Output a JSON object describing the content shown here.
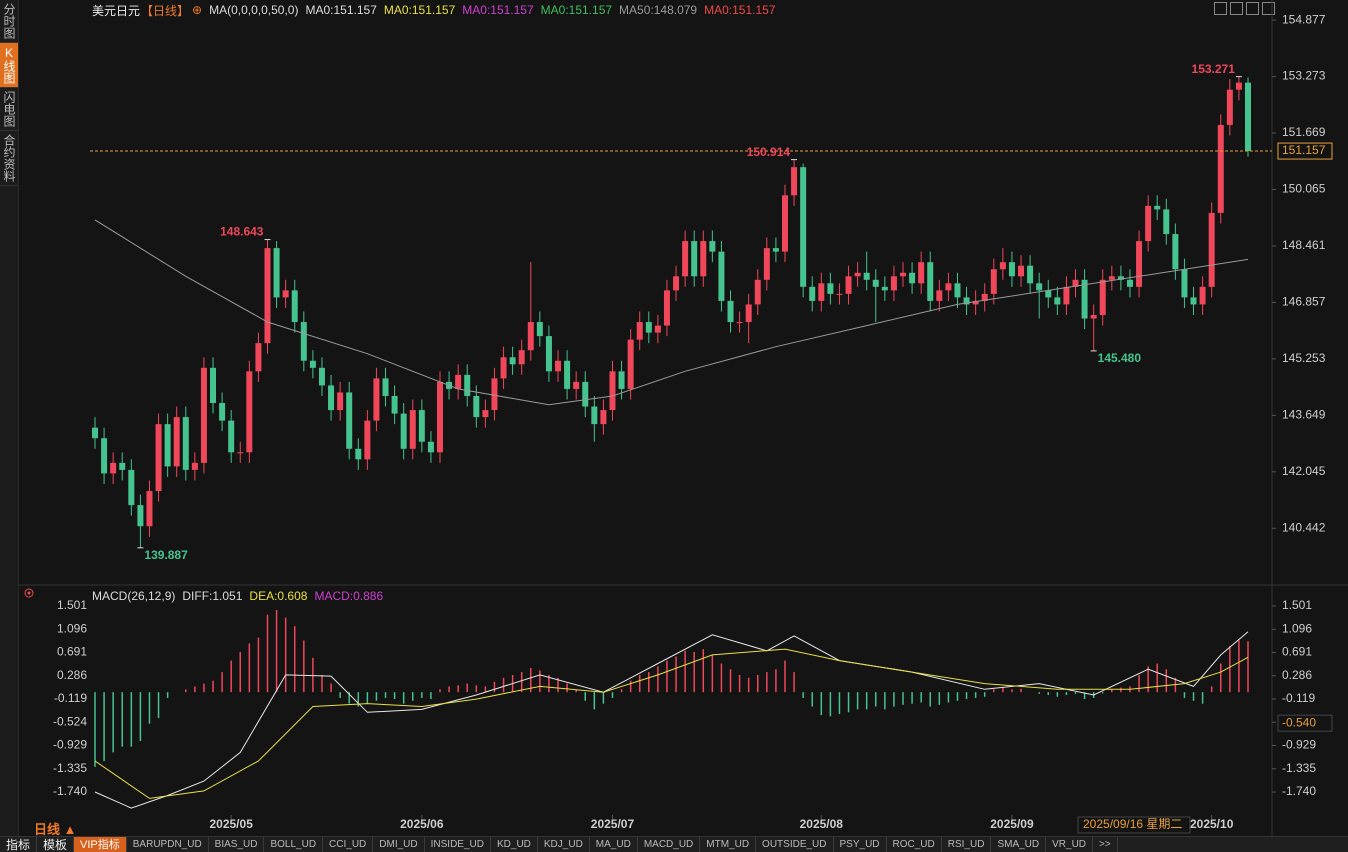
{
  "chart_data": {
    "type": "candlestick",
    "title": "美元日元",
    "period": "【日线】",
    "add_icon": "⊕",
    "legend": [
      {
        "text": "MA(0,0,0,0,50,0)",
        "color": "#dddddd"
      },
      {
        "text": "MA0:151.157",
        "color": "#dddddd"
      },
      {
        "text": "MA0:151.157",
        "color": "#e8e043"
      },
      {
        "text": "MA0:151.157",
        "color": "#d040d0"
      },
      {
        "text": "MA0:151.157",
        "color": "#3fbf5f"
      },
      {
        "text": "MA50:148.079",
        "color": "#9a9a9a"
      },
      {
        "text": "MA0:151.157",
        "color": "#f04848"
      }
    ],
    "up_color": "#f0475a",
    "down_color": "#45c48f",
    "last_color": "#e8a03c",
    "open": [
      143.3,
      143.0,
      142.0,
      142.3,
      142.1,
      141.1,
      140.5,
      141.5,
      143.4,
      142.2,
      143.6,
      142.1,
      142.3,
      145.0,
      144.0,
      143.5,
      142.6,
      142.6,
      144.9,
      145.7,
      148.4,
      147.0,
      147.2,
      146.3,
      145.2,
      145.0,
      144.5,
      143.8,
      144.3,
      142.7,
      142.4,
      143.5,
      144.7,
      144.2,
      143.7,
      142.7,
      143.8,
      142.9,
      142.6,
      144.6,
      144.4,
      144.8,
      144.2,
      143.6,
      143.8,
      144.7,
      145.3,
      145.1,
      145.5,
      146.3,
      145.9,
      144.9,
      145.2,
      144.4,
      144.6,
      143.9,
      143.4,
      143.8,
      144.9,
      144.4,
      145.8,
      146.3,
      146.0,
      146.2,
      147.2,
      147.6,
      148.6,
      147.6,
      148.6,
      148.3,
      146.9,
      146.3,
      146.3,
      146.8,
      147.5,
      148.4,
      148.3,
      149.9,
      150.7,
      147.3,
      146.9,
      147.4,
      147.1,
      147.1,
      147.6,
      147.7,
      147.5,
      147.3,
      147.2,
      147.6,
      147.7,
      147.4,
      148.0,
      146.9,
      147.2,
      147.4,
      147.0,
      146.8,
      146.9,
      147.1,
      147.8,
      148.0,
      147.6,
      147.9,
      147.4,
      147.2,
      147.0,
      146.8,
      147.3,
      147.5,
      146.4,
      146.5,
      147.5,
      147.6,
      147.5,
      147.3,
      148.6,
      149.6,
      149.5,
      148.8,
      147.8,
      147.0,
      146.8,
      147.3,
      149.4,
      151.9,
      152.9,
      153.1
    ],
    "high": [
      143.6,
      143.3,
      142.6,
      142.6,
      142.4,
      141.4,
      141.8,
      143.7,
      143.7,
      143.9,
      143.9,
      142.6,
      145.3,
      145.3,
      144.3,
      143.8,
      142.9,
      145.2,
      146.0,
      148.643,
      148.6,
      147.5,
      147.5,
      146.6,
      145.5,
      145.3,
      144.8,
      144.6,
      144.6,
      143.0,
      143.8,
      145.0,
      145.0,
      144.5,
      144.0,
      144.1,
      144.1,
      143.2,
      144.9,
      144.9,
      145.1,
      145.1,
      144.5,
      144.1,
      145.0,
      145.6,
      145.6,
      145.8,
      148.0,
      146.6,
      146.2,
      145.5,
      145.5,
      144.9,
      144.9,
      144.2,
      144.1,
      145.2,
      145.2,
      146.1,
      146.6,
      146.6,
      146.5,
      147.5,
      147.9,
      148.9,
      148.9,
      148.9,
      148.9,
      148.6,
      147.2,
      146.6,
      147.1,
      147.8,
      148.7,
      148.7,
      150.2,
      150.914,
      150.8,
      147.6,
      147.7,
      147.7,
      147.4,
      147.9,
      148.0,
      148.3,
      147.8,
      147.6,
      147.9,
      148.0,
      148.0,
      148.3,
      148.3,
      147.5,
      147.7,
      147.7,
      147.3,
      147.2,
      147.4,
      148.1,
      148.4,
      148.3,
      148.2,
      148.2,
      147.7,
      147.5,
      147.3,
      147.6,
      147.8,
      147.8,
      146.8,
      147.8,
      147.9,
      147.9,
      147.8,
      148.9,
      149.9,
      149.9,
      149.8,
      149.1,
      148.1,
      147.3,
      147.6,
      149.7,
      152.2,
      153.2,
      153.271,
      153.25
    ],
    "low": [
      142.7,
      141.7,
      141.7,
      141.8,
      140.8,
      139.887,
      140.2,
      141.2,
      141.9,
      141.9,
      141.8,
      141.8,
      142.0,
      143.7,
      143.2,
      142.3,
      142.3,
      142.3,
      144.6,
      145.4,
      146.7,
      146.7,
      146.0,
      144.9,
      144.7,
      144.2,
      143.5,
      143.5,
      142.4,
      142.1,
      142.1,
      143.2,
      143.9,
      143.4,
      142.4,
      142.4,
      142.6,
      142.3,
      142.3,
      144.1,
      144.1,
      143.9,
      143.3,
      143.3,
      143.5,
      144.4,
      144.8,
      144.8,
      145.2,
      145.6,
      144.6,
      144.6,
      144.1,
      144.1,
      143.6,
      142.9,
      143.1,
      143.5,
      144.1,
      144.1,
      145.5,
      145.7,
      145.7,
      145.9,
      146.9,
      147.3,
      147.3,
      147.3,
      148.0,
      146.6,
      146.0,
      146.0,
      145.7,
      146.5,
      147.2,
      148.0,
      148.0,
      149.6,
      147.0,
      146.6,
      146.6,
      146.8,
      146.8,
      146.8,
      147.3,
      147.2,
      146.3,
      146.9,
      146.9,
      147.3,
      147.1,
      147.1,
      146.6,
      146.6,
      146.9,
      146.7,
      146.5,
      146.5,
      146.6,
      146.8,
      147.5,
      147.3,
      147.3,
      147.1,
      146.4,
      146.7,
      146.5,
      146.5,
      147.0,
      146.1,
      145.48,
      146.2,
      147.2,
      147.2,
      147.0,
      147.0,
      148.3,
      149.2,
      148.5,
      147.5,
      146.7,
      146.5,
      146.5,
      147.0,
      149.1,
      151.6,
      152.6,
      151.0
    ],
    "close": [
      143.0,
      142.0,
      142.3,
      142.1,
      141.1,
      140.5,
      141.5,
      143.4,
      142.2,
      143.6,
      142.1,
      142.3,
      145.0,
      144.0,
      143.5,
      142.6,
      142.6,
      144.9,
      145.7,
      148.4,
      147.0,
      147.2,
      146.3,
      145.2,
      145.0,
      144.5,
      143.8,
      144.3,
      142.7,
      142.4,
      143.5,
      144.7,
      144.2,
      143.7,
      142.7,
      143.8,
      142.9,
      142.6,
      144.6,
      144.4,
      144.8,
      144.2,
      143.6,
      143.8,
      144.7,
      145.3,
      145.1,
      145.5,
      146.3,
      145.9,
      144.9,
      145.2,
      144.4,
      144.6,
      143.9,
      143.4,
      143.8,
      144.9,
      144.4,
      145.8,
      146.3,
      146.0,
      146.2,
      147.2,
      147.6,
      148.6,
      147.6,
      148.6,
      148.3,
      146.9,
      146.3,
      146.3,
      146.8,
      147.5,
      148.4,
      148.3,
      149.9,
      150.7,
      147.3,
      146.9,
      147.4,
      147.1,
      147.1,
      147.6,
      147.7,
      147.5,
      147.3,
      147.2,
      147.6,
      147.7,
      147.4,
      148.0,
      146.9,
      147.2,
      147.4,
      147.0,
      146.8,
      146.9,
      147.1,
      147.8,
      148.0,
      147.6,
      147.9,
      147.4,
      147.2,
      147.0,
      146.8,
      147.3,
      147.5,
      146.4,
      146.5,
      147.5,
      147.6,
      147.5,
      147.3,
      148.6,
      149.6,
      149.5,
      148.8,
      147.8,
      147.0,
      146.8,
      147.3,
      149.4,
      151.9,
      152.9,
      153.1,
      151.157
    ],
    "ma": {
      "name": "MA50",
      "color": "#9a9a9a",
      "x": [
        0,
        10,
        19,
        30,
        40,
        50,
        57,
        65,
        75,
        85,
        95,
        105,
        115,
        127
      ],
      "values": [
        149.2,
        147.6,
        146.3,
        145.4,
        144.4,
        143.95,
        144.2,
        144.9,
        145.6,
        146.2,
        146.8,
        147.2,
        147.6,
        148.079
      ]
    },
    "annotations": [
      {
        "value": 153.271,
        "label": "153.271"
      },
      {
        "value": 150.914,
        "label": "150.914"
      },
      {
        "value": 148.643,
        "label": "148.643"
      },
      {
        "value": 145.48,
        "label": "145.480"
      },
      {
        "value": 139.887,
        "label": "139.887"
      }
    ],
    "ylim": [
      139.2,
      155.05
    ],
    "yticks": [
      154.877,
      153.273,
      151.669,
      150.065,
      148.461,
      146.857,
      145.253,
      143.649,
      142.045,
      140.442
    ],
    "xticks": [
      {
        "value": 15,
        "label": "2025/05"
      },
      {
        "value": 36,
        "label": "2025/06"
      },
      {
        "value": 57,
        "label": "2025/07"
      },
      {
        "value": 80,
        "label": "2025/08"
      },
      {
        "value": 101,
        "label": "2025/09"
      },
      {
        "value": 123,
        "label": "2025/10"
      }
    ],
    "cursor_date": "2025/09/16 星期二",
    "macd": {
      "title": "MACD(26,12,9)",
      "legend": [
        {
          "text": "DIFF:1.051",
          "color": "#dddddd"
        },
        {
          "text": "DEA:0.608",
          "color": "#e8e043"
        },
        {
          "text": "MACD:0.886",
          "color": "#d040d0"
        }
      ],
      "hist": [
        -1.3,
        -1.2,
        -1.05,
        -0.95,
        -0.95,
        -0.85,
        -0.55,
        -0.45,
        -0.1,
        0.0,
        0.05,
        0.1,
        0.15,
        0.2,
        0.35,
        0.55,
        0.7,
        0.85,
        0.95,
        1.35,
        1.43,
        1.3,
        1.15,
        0.9,
        0.6,
        0.3,
        0.15,
        -0.1,
        -0.2,
        -0.25,
        -0.2,
        -0.15,
        -0.1,
        -0.12,
        -0.2,
        -0.15,
        -0.1,
        -0.12,
        0.05,
        0.1,
        0.12,
        0.15,
        0.12,
        0.1,
        0.18,
        0.25,
        0.3,
        0.35,
        0.42,
        0.38,
        0.3,
        0.25,
        0.15,
        0.05,
        -0.15,
        -0.3,
        -0.2,
        -0.1,
        0.05,
        0.2,
        0.3,
        0.35,
        0.45,
        0.55,
        0.62,
        0.72,
        0.7,
        0.75,
        0.65,
        0.5,
        0.4,
        0.3,
        0.25,
        0.3,
        0.35,
        0.4,
        0.55,
        0.35,
        -0.1,
        -0.25,
        -0.4,
        -0.42,
        -0.38,
        -0.35,
        -0.3,
        -0.3,
        -0.25,
        -0.3,
        -0.25,
        -0.22,
        -0.2,
        -0.18,
        -0.25,
        -0.22,
        -0.18,
        -0.15,
        -0.12,
        -0.1,
        -0.08,
        0.05,
        0.08,
        0.05,
        0.06,
        0.0,
        -0.03,
        -0.05,
        -0.08,
        -0.05,
        -0.03,
        -0.12,
        -0.1,
        -0.02,
        0.05,
        0.08,
        0.1,
        0.3,
        0.45,
        0.5,
        0.4,
        0.25,
        -0.1,
        -0.15,
        -0.2,
        0.1,
        0.5,
        0.8,
        0.9,
        0.886
      ],
      "diff": {
        "name": "DIFF",
        "color": "#e8e8e8",
        "x": [
          0,
          4,
          8,
          12,
          16,
          21,
          26,
          30,
          36,
          42,
          49,
          56,
          62,
          68,
          74,
          77,
          82,
          90,
          98,
          104,
          110,
          116,
          121,
          124,
          127
        ],
        "values": [
          -1.74,
          -2.02,
          -1.8,
          -1.55,
          -1.05,
          0.3,
          0.28,
          -0.35,
          -0.3,
          -0.05,
          0.3,
          0.0,
          0.5,
          1.0,
          0.72,
          0.98,
          0.55,
          0.35,
          0.05,
          0.15,
          -0.05,
          0.4,
          0.1,
          0.65,
          1.051
        ]
      },
      "dea": {
        "name": "DEA",
        "color": "#e8e043",
        "x": [
          0,
          6,
          12,
          18,
          24,
          30,
          36,
          42,
          49,
          56,
          62,
          68,
          76,
          82,
          90,
          98,
          106,
          114,
          120,
          124,
          127
        ],
        "values": [
          -1.2,
          -1.85,
          -1.72,
          -1.2,
          -0.25,
          -0.2,
          -0.25,
          -0.12,
          0.1,
          0.0,
          0.3,
          0.65,
          0.75,
          0.55,
          0.35,
          0.15,
          0.05,
          0.05,
          0.15,
          0.35,
          0.608
        ]
      },
      "ylim": [
        -2.14,
        1.78
      ],
      "yticks": [
        1.501,
        1.096,
        0.691,
        0.286,
        -0.119,
        -0.524,
        -0.929,
        -1.335,
        {
          "value": -1.74,
          "label": "-1.740"
        }
      ],
      "cursor_value": {
        "value": -0.54,
        "label": "-0.540"
      }
    }
  },
  "sidebar": [
    "分时图",
    "K线图",
    "闪电图",
    "合约资料"
  ],
  "toolbar": {
    "period": "日线 ▲",
    "tabs": [
      "指标",
      "模板",
      "VIP指标",
      "BARUPDN_UD",
      "BIAS_UD",
      "BOLL_UD",
      "CCI_UD",
      "DMI_UD",
      "INSIDE_UD",
      "KD_UD",
      "KDJ_UD",
      "MA_UD",
      "MACD_UD",
      "MTM_UD",
      "OUTSIDE_UD",
      "PSY_UD",
      "ROC_UD",
      "RSI_UD",
      "SMA_UD",
      "VR_UD",
      ">>"
    ]
  }
}
